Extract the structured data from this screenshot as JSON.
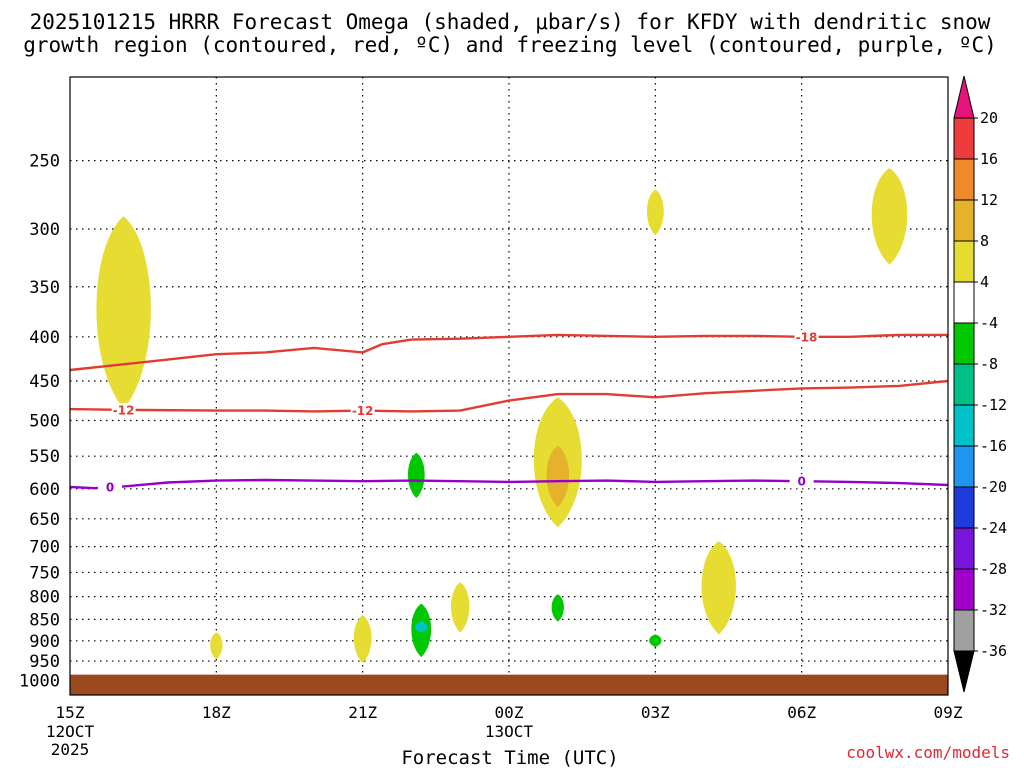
{
  "chart_data": {
    "type": "heatmap",
    "title_line1": "2025101215 HRRR Forecast Omega (shaded, μbar/s) for KFDY with dendritic snow",
    "title_line2": "growth region (contoured, red, ºC) and freezing level (contoured, purple, ºC)",
    "xlabel": "Forecast Time (UTC)",
    "credit": "coolwx.com/models",
    "x_range_hours": [
      0,
      18
    ],
    "x_ticks": [
      {
        "hour": 0,
        "label": "15Z",
        "sub1": "12OCT",
        "sub2": "2025"
      },
      {
        "hour": 3,
        "label": "18Z",
        "sub1": "",
        "sub2": ""
      },
      {
        "hour": 6,
        "label": "21Z",
        "sub1": "",
        "sub2": ""
      },
      {
        "hour": 9,
        "label": "00Z",
        "sub1": "13OCT",
        "sub2": ""
      },
      {
        "hour": 12,
        "label": "03Z",
        "sub1": "",
        "sub2": ""
      },
      {
        "hour": 15,
        "label": "06Z",
        "sub1": "",
        "sub2": ""
      },
      {
        "hour": 18,
        "label": "09Z",
        "sub1": "",
        "sub2": ""
      }
    ],
    "y_ticks_mb": [
      250,
      300,
      350,
      400,
      450,
      500,
      550,
      600,
      650,
      700,
      750,
      800,
      850,
      900,
      950,
      1000
    ],
    "y_range_mb": [
      200,
      1040
    ],
    "colorbar": {
      "levels": [
        "20",
        "16",
        "12",
        "8",
        "4",
        "-4",
        "-8",
        "-12",
        "-16",
        "-20",
        "-24",
        "-28",
        "-32",
        "-36"
      ],
      "colors": [
        "#e6147a",
        "#ee3b3b",
        "#ee8a2a",
        "#e6b22c",
        "#e6dc32",
        "#ffffff",
        "#00c800",
        "#00c08a",
        "#00c0c8",
        "#1e96f0",
        "#1e3cdc",
        "#7a14dc",
        "#a000c8",
        "#a0a0a0",
        "#000000"
      ]
    },
    "omega_regions": [
      {
        "label": "rising",
        "value": 5,
        "color": "#e6dc32",
        "center_hour": 1.1,
        "p_top": 290,
        "p_bottom": 485
      },
      {
        "label": "rising",
        "value": 5,
        "color": "#e6dc32",
        "center_hour": 12.0,
        "p_top": 270,
        "p_bottom": 305
      },
      {
        "label": "rising",
        "value": 5,
        "color": "#e6dc32",
        "center_hour": 16.8,
        "p_top": 255,
        "p_bottom": 330
      },
      {
        "label": "sinking",
        "value": -6,
        "color": "#00c800",
        "center_hour": 7.1,
        "p_top": 545,
        "p_bottom": 615
      },
      {
        "label": "rising",
        "value": 5,
        "color": "#e6dc32",
        "center_hour": 10.0,
        "p_top": 470,
        "p_bottom": 665
      },
      {
        "label": "rising",
        "value": 9,
        "color": "#e6b22c",
        "center_hour": 10.0,
        "p_top": 535,
        "p_bottom": 630
      },
      {
        "label": "rising",
        "value": 5,
        "color": "#e6dc32",
        "center_hour": 8.0,
        "p_top": 770,
        "p_bottom": 880
      },
      {
        "label": "rising",
        "value": 5,
        "color": "#e6dc32",
        "center_hour": 13.3,
        "p_top": 690,
        "p_bottom": 885
      },
      {
        "label": "sinking",
        "value": -6,
        "color": "#00c800",
        "center_hour": 10.0,
        "p_top": 795,
        "p_bottom": 855
      },
      {
        "label": "sinking",
        "value": -6,
        "color": "#00c800",
        "center_hour": 7.2,
        "p_top": 815,
        "p_bottom": 940
      },
      {
        "label": "sinking",
        "value": -14,
        "color": "#00c0c8",
        "center_hour": 7.2,
        "p_top": 855,
        "p_bottom": 880
      },
      {
        "label": "sinking",
        "value": -6,
        "color": "#00c800",
        "center_hour": 12.0,
        "p_top": 885,
        "p_bottom": 915
      },
      {
        "label": "rising",
        "value": 5,
        "color": "#e6dc32",
        "center_hour": 3.0,
        "p_top": 880,
        "p_bottom": 945
      },
      {
        "label": "rising",
        "value": 5,
        "color": "#e6dc32",
        "center_hour": 6.0,
        "p_top": 840,
        "p_bottom": 955
      }
    ],
    "contours": [
      {
        "name": "-18",
        "label": "-18",
        "color": "#e23c32",
        "points": [
          [
            0,
            437
          ],
          [
            2,
            425
          ],
          [
            3,
            419
          ],
          [
            4,
            417
          ],
          [
            5,
            412
          ],
          [
            6,
            417
          ],
          [
            6.4,
            408
          ],
          [
            7,
            403
          ],
          [
            8,
            402
          ],
          [
            9,
            400
          ],
          [
            10,
            398
          ],
          [
            11,
            399
          ],
          [
            12,
            400
          ],
          [
            13,
            399
          ],
          [
            14,
            399
          ],
          [
            15,
            400
          ],
          [
            16,
            400
          ],
          [
            17,
            398
          ],
          [
            18,
            398
          ]
        ],
        "label_positions": [
          15.1
        ]
      },
      {
        "name": "-12",
        "label": "-12",
        "color": "#e23c32",
        "points": [
          [
            0,
            485
          ],
          [
            1,
            486
          ],
          [
            3,
            487
          ],
          [
            4,
            487
          ],
          [
            5,
            488
          ],
          [
            6,
            487
          ],
          [
            7,
            488
          ],
          [
            8,
            487
          ],
          [
            9,
            474
          ],
          [
            10,
            466
          ],
          [
            11,
            466
          ],
          [
            12,
            470
          ],
          [
            13,
            465
          ],
          [
            14,
            462
          ],
          [
            15,
            459
          ],
          [
            16,
            458
          ],
          [
            17,
            456
          ],
          [
            18,
            450
          ]
        ],
        "label_positions": [
          1.1,
          6.0
        ]
      },
      {
        "name": "0",
        "label": "0",
        "color": "#9600c8",
        "points": [
          [
            0,
            597
          ],
          [
            0.5,
            599
          ],
          [
            1,
            597
          ],
          [
            2,
            590
          ],
          [
            3,
            587
          ],
          [
            4,
            586
          ],
          [
            5,
            587
          ],
          [
            6,
            588
          ],
          [
            7,
            587
          ],
          [
            8,
            588
          ],
          [
            9,
            589
          ],
          [
            10,
            588
          ],
          [
            11,
            587
          ],
          [
            12,
            589
          ],
          [
            13,
            588
          ],
          [
            14,
            587
          ],
          [
            15,
            588
          ],
          [
            16,
            589
          ],
          [
            17,
            591
          ],
          [
            18,
            594
          ]
        ],
        "label_positions": [
          0.0,
          15.0
        ]
      }
    ],
    "ground": {
      "p_top": 985,
      "color": "#9b4a20"
    }
  }
}
